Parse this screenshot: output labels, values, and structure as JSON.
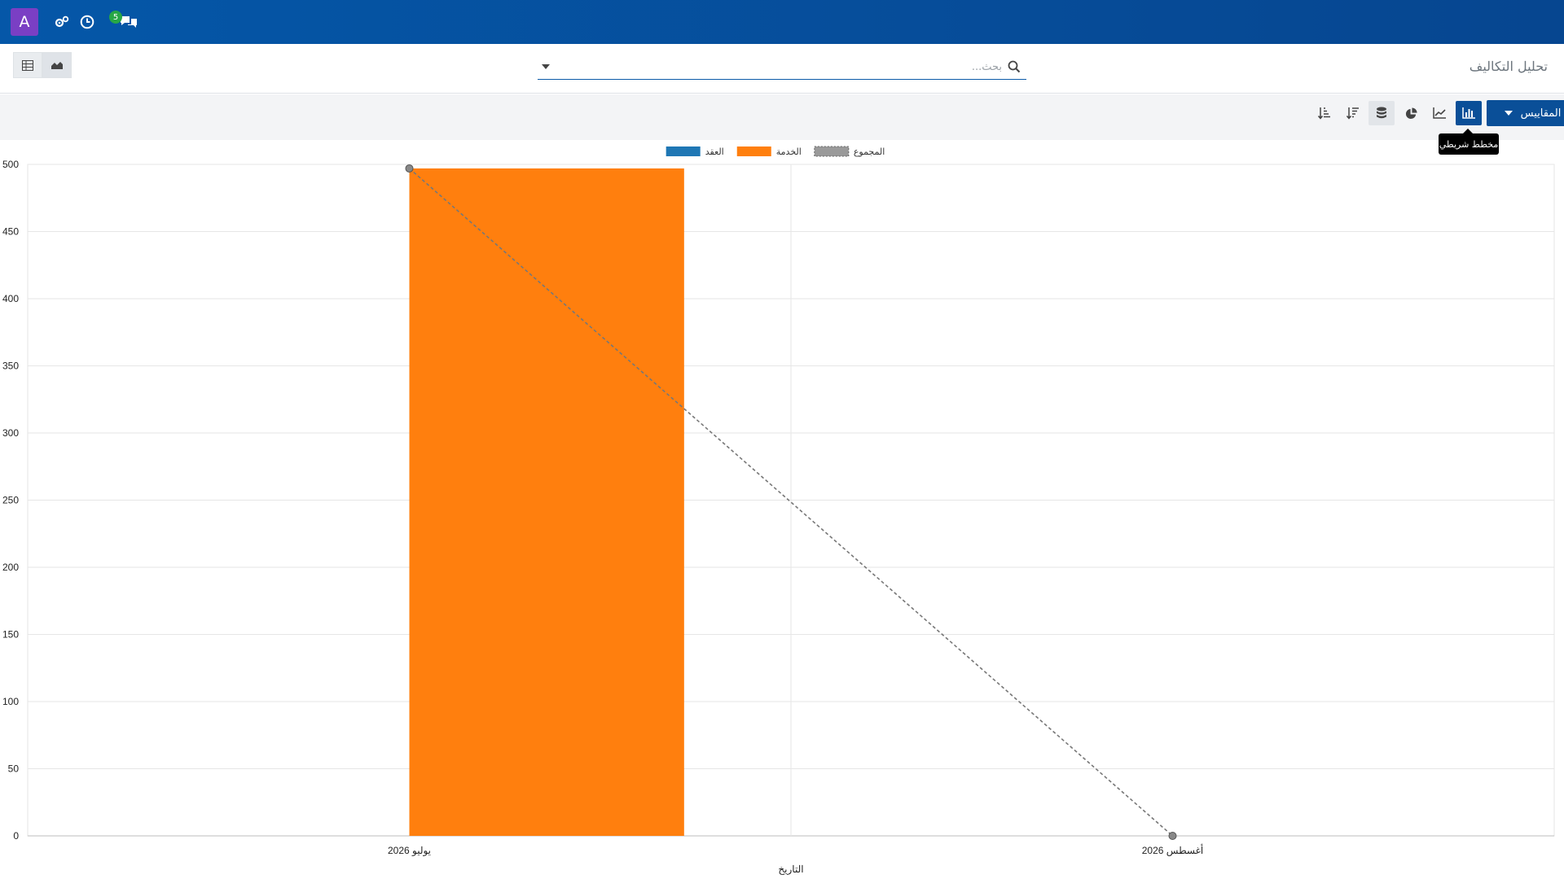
{
  "navbar": {
    "avatar_letter": "A",
    "message_count": "5",
    "colors": {
      "avatar": "#7a3fc4",
      "badge": "#28a745"
    }
  },
  "control_panel": {
    "breadcrumb": "تحليل التكاليف",
    "search": {
      "placeholder": "بحث...",
      "value": ""
    }
  },
  "toolbar": {
    "measures_label": "المقاييس",
    "tooltip": "مخطط شريطي",
    "active_view": "bar"
  },
  "chart_data": {
    "type": "bar",
    "title": "",
    "xlabel": "التاريخ",
    "ylabel": "",
    "ylim": [
      0,
      500
    ],
    "yticks": [
      0,
      50,
      100,
      150,
      200,
      250,
      300,
      350,
      400,
      450,
      500
    ],
    "categories": [
      "يوليو 2026",
      "أغسطس 2026"
    ],
    "series": [
      {
        "name": "العقد",
        "kind": "bar",
        "color": "#1f77b4",
        "values": [
          0,
          0
        ]
      },
      {
        "name": "الخدمة",
        "kind": "bar",
        "color": "#ff7f0e",
        "values": [
          497,
          0
        ]
      },
      {
        "name": "المجموع",
        "kind": "line",
        "style": "dashed",
        "color": "#777777",
        "values": [
          497,
          0
        ]
      }
    ],
    "legend_position": "top-center",
    "grid": true
  }
}
